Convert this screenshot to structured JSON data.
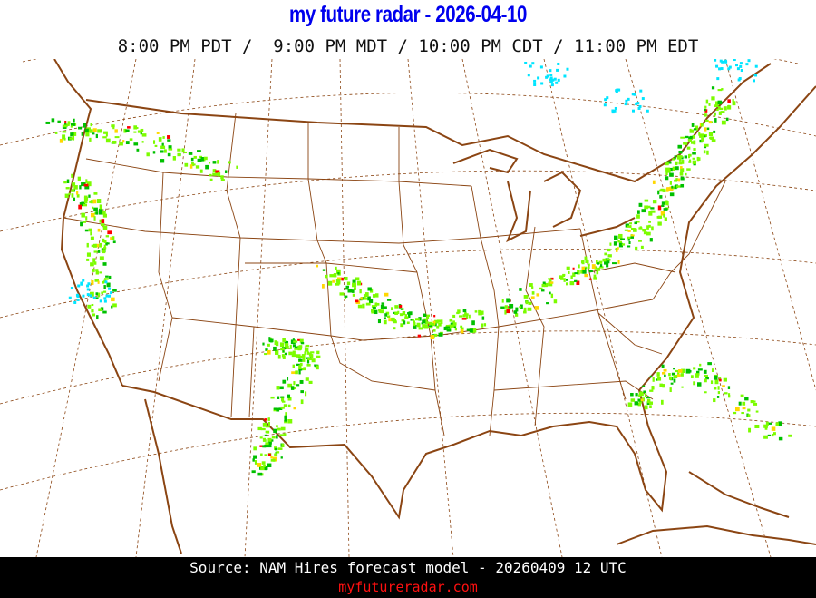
{
  "header": {
    "title": "my future radar - 2026-04-10",
    "times": "8:00 PM PDT /  9:00 PM MDT / 10:00 PM CDT / 11:00 PM EDT"
  },
  "map": {
    "region": "Continental United States",
    "layer": "forecast simulated radar reflectivity",
    "colors": {
      "border": "#8b4513",
      "graticule": "#8b4513",
      "light_precip": "#7cfc00",
      "moderate_precip": "#00c000",
      "heavy_precip": "#ffd700",
      "intense_precip": "#ff0000",
      "snow": "#00e5ff"
    }
  },
  "footer": {
    "source": "Source: NAM Hires forecast model - 20260409 12 UTC",
    "site": "myfutureradar.com"
  }
}
